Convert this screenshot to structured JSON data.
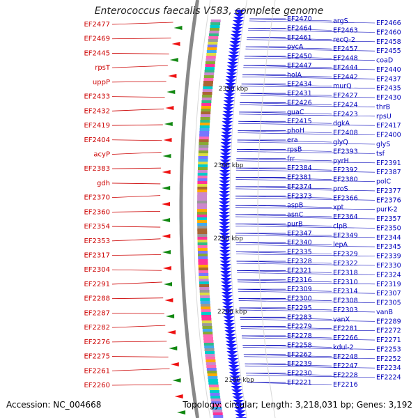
{
  "title": "Enterococcus faecalis V583, complete genome",
  "footer": {
    "accession": "Accession: NC_004668",
    "topology": "Topology: circular; Length: 3,218,031 bp; Genes: 3,192"
  },
  "colors": {
    "right_label": "#0000bb",
    "left_label": "#cc0000",
    "ring": "#888888",
    "cds_forward": "#1a1aff",
    "feature_red": "#ee1111",
    "feature_green": "#118811"
  },
  "scale_labels": [
    "2350 kbp",
    "2300 kbp",
    "2250 kbp",
    "2200 kbp",
    "2150 kbp"
  ],
  "left_labels": [
    "EF2477",
    "EF2469",
    "EF2445",
    "rpsT",
    "uppP",
    "EF2433",
    "EF2432",
    "EF2419",
    "EF2404",
    "acyP",
    "EF2383",
    "gdh",
    "EF2370",
    "EF2360",
    "EF2354",
    "EF2353",
    "EF2317",
    "EF2304",
    "EF2291",
    "EF2288",
    "EF2287",
    "EF2282",
    "EF2276",
    "EF2275",
    "EF2261",
    "EF2260"
  ],
  "right_labels": [
    "EF2470",
    "argS",
    "EF2466",
    "EF2464",
    "EF2463",
    "EF2460",
    "EF2461",
    "recQ-2",
    "EF2458",
    "pycA",
    "EF2457",
    "EF2455",
    "EF2450",
    "EF2448",
    "coaD",
    "EF2447",
    "EF2444",
    "EF2440",
    "holA",
    "EF2442",
    "EF2437",
    "EF2434",
    "murQ",
    "EF2435",
    "EF2431",
    "EF2427",
    "EF2430",
    "EF2426",
    "EF2424",
    "thrB",
    "guaC",
    "EF2423",
    "rpsU",
    "EF2415",
    "dgkA",
    "EF2417",
    "phoH",
    "EF2408",
    "EF2400",
    "era",
    "glyQ",
    "glyS",
    "rpsB",
    "EF2393",
    "tsf",
    "frr",
    "pyrH",
    "EF2391",
    "EF2384",
    "EF2392",
    "EF2387",
    "EF2381",
    "EF2380",
    "polC",
    "EF2374",
    "proS",
    "EF2377",
    "EF2373",
    "EF2366",
    "EF2376",
    "aspB",
    "xpt",
    "purK-2",
    "asnC",
    "EF2364",
    "EF2357",
    "purB",
    "clpB",
    "EF2350",
    "EF2347",
    "EF2349",
    "EF2344",
    "EF2340",
    "lepA",
    "EF2345",
    "EF2335",
    "EF2329",
    "EF2339",
    "EF2328",
    "EF2322",
    "EF2330",
    "EF2321",
    "EF2318",
    "EF2324",
    "EF2316",
    "EF2310",
    "EF2319",
    "EF2309",
    "EF2314",
    "EF2307",
    "EF2300",
    "EF2308",
    "EF2305",
    "EF2295",
    "EF2303",
    "vanB",
    "EF2283",
    "vanX",
    "EF2289",
    "EF2279",
    "EF2281",
    "EF2272",
    "EF2278",
    "EF2266",
    "EF2271",
    "EF2258",
    "kdul-2",
    "EF2253",
    "EF2262",
    "EF2248",
    "EF2252",
    "EF2239",
    "EF2247",
    "EF2234",
    "EF2230",
    "EF2228",
    "EF2224",
    "EF2221",
    "EF2216"
  ]
}
